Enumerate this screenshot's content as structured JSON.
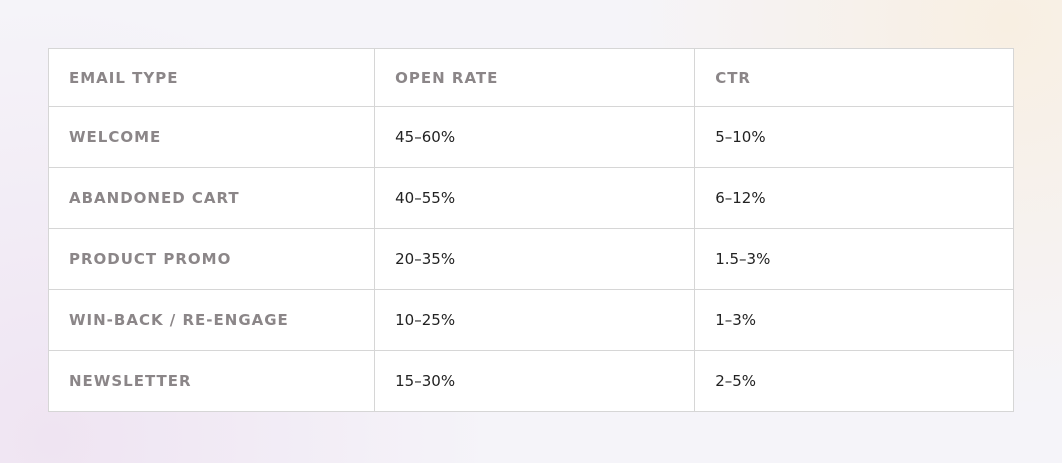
{
  "table": {
    "header": [
      "EMAIL TYPE",
      "OPEN RATE",
      "CTR"
    ],
    "rows": [
      [
        "WELCOME",
        "45–60%",
        "5–10%"
      ],
      [
        "ABANDONED CART",
        "40–55%",
        "6–12%"
      ],
      [
        "PRODUCT PROMO",
        "20–35%",
        "1.5–3%"
      ],
      [
        "WIN-BACK / RE-ENGAGE",
        "10–25%",
        "1–3%"
      ],
      [
        "NEWSLETTER",
        "15–30%",
        "2–5%"
      ]
    ]
  }
}
